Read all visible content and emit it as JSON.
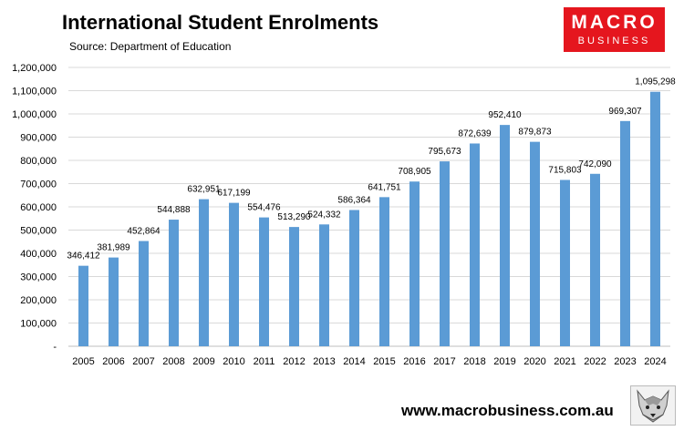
{
  "header": {
    "title": "International Student Enrolments",
    "subtitle": "Source: Department of Education"
  },
  "logo": {
    "line1": "MACRO",
    "line2": "BUSINESS",
    "color": "#e5161e"
  },
  "footer": {
    "url": "www.macrobusiness.com.au",
    "icon": "wolf-icon"
  },
  "chart_data": {
    "type": "bar",
    "categories": [
      "2005",
      "2006",
      "2007",
      "2008",
      "2009",
      "2010",
      "2011",
      "2012",
      "2013",
      "2014",
      "2015",
      "2016",
      "2017",
      "2018",
      "2019",
      "2020",
      "2021",
      "2022",
      "2023",
      "2024"
    ],
    "values": [
      346412,
      381989,
      452864,
      544888,
      632951,
      617199,
      554476,
      513290,
      524332,
      586364,
      641751,
      708905,
      795673,
      872639,
      952410,
      879873,
      715803,
      742090,
      969307,
      1095298
    ],
    "data_labels": [
      "346,412",
      "381,989",
      "452,864",
      "544,888",
      "632,951",
      "617,199",
      "554,476",
      "513,290",
      "524,332",
      "586,364",
      "641,751",
      "708,905",
      "795,673",
      "872,639",
      "952,410",
      "879,873",
      "715,803",
      "742,090",
      "969,307",
      "1,095,298"
    ],
    "y_ticks": [
      0,
      100000,
      200000,
      300000,
      400000,
      500000,
      600000,
      700000,
      800000,
      900000,
      1000000,
      1100000,
      1200000
    ],
    "y_tick_labels": [
      "-",
      "100,000",
      "200,000",
      "300,000",
      "400,000",
      "500,000",
      "600,000",
      "700,000",
      "800,000",
      "900,000",
      "1,000,000",
      "1,100,000",
      "1,200,000"
    ],
    "ylim": [
      0,
      1200000
    ],
    "grid": true,
    "legend": "none",
    "bar_color": "#5b9bd5",
    "grid_color": "#d9d9d9"
  }
}
